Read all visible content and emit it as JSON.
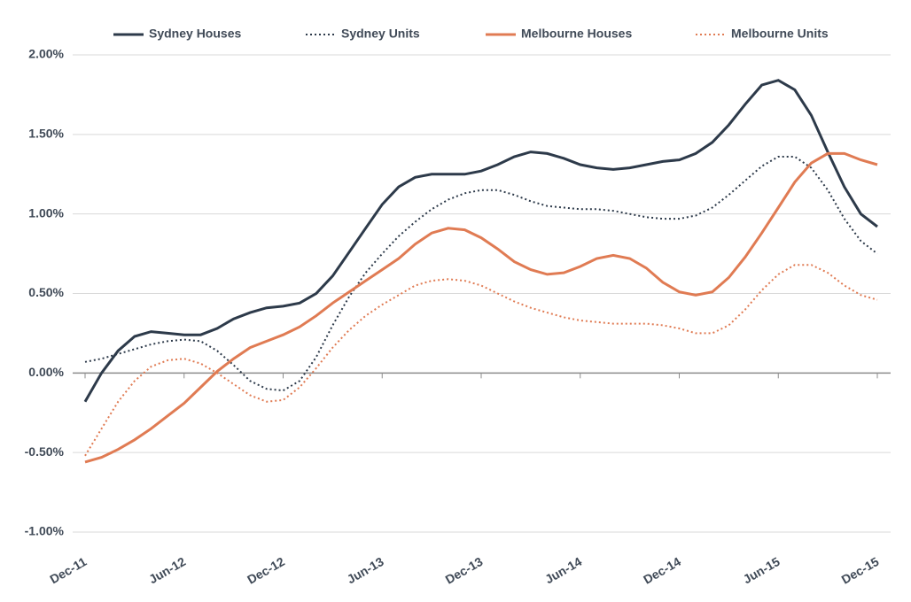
{
  "chart_data": {
    "type": "line",
    "categories": [
      "Dec-11",
      null,
      null,
      null,
      null,
      null,
      "Jun-12",
      null,
      null,
      null,
      null,
      null,
      "Dec-12",
      null,
      null,
      null,
      null,
      null,
      "Jun-13",
      null,
      null,
      null,
      null,
      null,
      "Dec-13",
      null,
      null,
      null,
      null,
      null,
      "Jun-14",
      null,
      null,
      null,
      null,
      null,
      "Dec-14",
      null,
      null,
      null,
      null,
      null,
      "Jun-15",
      null,
      null,
      null,
      null,
      null,
      "Dec-15"
    ],
    "series": [
      {
        "name": "Sydney Houses",
        "color": "#2d3a4a",
        "dash": "solid",
        "values": [
          -0.18,
          0.0,
          0.14,
          0.23,
          0.26,
          0.25,
          0.24,
          0.24,
          0.28,
          0.34,
          0.38,
          0.41,
          0.42,
          0.44,
          0.5,
          0.61,
          0.76,
          0.91,
          1.06,
          1.17,
          1.23,
          1.25,
          1.25,
          1.25,
          1.27,
          1.31,
          1.36,
          1.39,
          1.38,
          1.35,
          1.31,
          1.29,
          1.28,
          1.29,
          1.31,
          1.33,
          1.34,
          1.38,
          1.45,
          1.56,
          1.69,
          1.81,
          1.84,
          1.78,
          1.62,
          1.39,
          1.17,
          1.0,
          0.92
        ]
      },
      {
        "name": "Sydney Units",
        "color": "#2d3a4a",
        "dash": "dotted",
        "values": [
          0.07,
          0.09,
          0.12,
          0.15,
          0.18,
          0.2,
          0.21,
          0.2,
          0.14,
          0.05,
          -0.05,
          -0.1,
          -0.11,
          -0.05,
          0.1,
          0.3,
          0.48,
          0.63,
          0.75,
          0.86,
          0.95,
          1.03,
          1.09,
          1.13,
          1.15,
          1.15,
          1.12,
          1.08,
          1.05,
          1.04,
          1.03,
          1.03,
          1.02,
          1.0,
          0.98,
          0.97,
          0.97,
          0.99,
          1.04,
          1.12,
          1.21,
          1.3,
          1.36,
          1.36,
          1.29,
          1.15,
          0.97,
          0.83,
          0.75
        ]
      },
      {
        "name": "Melbourne Houses",
        "color": "#e07b53",
        "dash": "solid",
        "values": [
          -0.56,
          -0.53,
          -0.48,
          -0.42,
          -0.35,
          -0.27,
          -0.19,
          -0.09,
          0.01,
          0.09,
          0.16,
          0.2,
          0.24,
          0.29,
          0.36,
          0.44,
          0.51,
          0.58,
          0.65,
          0.72,
          0.81,
          0.88,
          0.91,
          0.9,
          0.85,
          0.78,
          0.7,
          0.65,
          0.62,
          0.63,
          0.67,
          0.72,
          0.74,
          0.72,
          0.66,
          0.57,
          0.51,
          0.49,
          0.51,
          0.6,
          0.73,
          0.88,
          1.04,
          1.2,
          1.32,
          1.38,
          1.38,
          1.34,
          1.31
        ]
      },
      {
        "name": "Melbourne Units",
        "color": "#e07b53",
        "dash": "dotted",
        "values": [
          -0.52,
          -0.35,
          -0.18,
          -0.05,
          0.04,
          0.08,
          0.09,
          0.06,
          0.0,
          -0.07,
          -0.14,
          -0.18,
          -0.17,
          -0.09,
          0.03,
          0.16,
          0.27,
          0.36,
          0.43,
          0.49,
          0.55,
          0.58,
          0.59,
          0.58,
          0.55,
          0.5,
          0.45,
          0.41,
          0.38,
          0.35,
          0.33,
          0.32,
          0.31,
          0.31,
          0.31,
          0.3,
          0.28,
          0.25,
          0.25,
          0.3,
          0.4,
          0.52,
          0.62,
          0.68,
          0.68,
          0.63,
          0.55,
          0.49,
          0.46
        ]
      }
    ],
    "ylim": [
      -1,
      2
    ],
    "yticks": [
      {
        "value": -1,
        "label": "-1.00%"
      },
      {
        "value": -0.5,
        "label": "-0.50%"
      },
      {
        "value": 0,
        "label": "0.00%"
      },
      {
        "value": 0.5,
        "label": "0.50%"
      },
      {
        "value": 1,
        "label": "1.00%"
      },
      {
        "value": 1.5,
        "label": "1.50%"
      },
      {
        "value": 2,
        "label": "2.00%"
      }
    ],
    "grid": true,
    "legend": "top"
  }
}
